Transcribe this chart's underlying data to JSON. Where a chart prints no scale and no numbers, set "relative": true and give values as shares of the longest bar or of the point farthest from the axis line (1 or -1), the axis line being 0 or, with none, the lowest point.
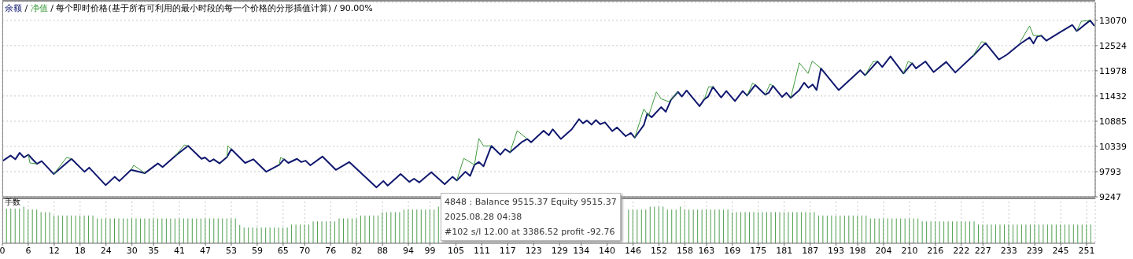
{
  "chart_data": [
    {
      "type": "line",
      "subtitle": "/ 每个即时价格(基于所有可利用的最小时段的每一个价格的分形插值计算) / 90.00%",
      "annotations": [
        "/"
      ],
      "legend": "top left",
      "grid": true,
      "marker": "none",
      "tick_labels": "y",
      "xlim": [
        0,
        253
      ],
      "xticks": [
        0,
        6,
        12,
        18,
        24,
        30,
        35,
        41,
        47,
        53,
        59,
        65,
        70,
        76,
        82,
        88,
        94,
        99,
        105,
        111,
        117,
        123,
        129,
        134,
        140,
        146,
        152,
        158,
        163,
        169,
        175,
        181,
        187,
        193,
        198,
        204,
        210,
        216,
        222,
        227,
        233,
        239,
        245,
        251
      ],
      "ylim": [
        9247,
        13460
      ],
      "yticks": [
        9247,
        9793,
        10339,
        10885,
        11432,
        11978,
        12524,
        13070
      ],
      "series": [
        {
          "name": "余额",
          "color": "#10186e",
          "x": [
            0,
            1.9,
            3.0,
            4.0,
            5.0,
            6.0,
            8.0,
            9.1,
            11.9,
            16.0,
            19.0,
            20.1,
            23.9,
            26.0,
            27.1,
            29.8,
            33.0,
            36.0,
            37.1,
            40.1,
            43.0,
            46.1,
            46.9,
            48.0,
            48.9,
            50.3,
            52.0,
            53.0,
            56.2,
            58.1,
            61.1,
            64.1,
            65.2,
            66.2,
            68.2,
            69.2,
            70.2,
            71.3,
            74.1,
            77.2,
            80.3,
            86.6,
            88.2,
            89.2,
            92.2,
            94.2,
            95.3,
            96.5,
            99.3,
            102.4,
            104.2,
            105.2,
            107.2,
            108.3,
            109.3,
            110.3,
            111.4,
            113.2,
            115.3,
            116.4,
            117.5,
            120.2,
            121.5,
            122.4,
            125.3,
            126.5,
            127.4,
            129.3,
            131.8,
            133.5,
            134.4,
            135.3,
            136.4,
            137.4,
            138.4,
            139.5,
            141.2,
            142.3,
            144.3,
            145.5,
            146.4,
            148.5,
            149.3,
            150.3,
            152.5,
            153.6,
            154.8,
            156.4,
            157.3,
            158.4,
            161.4,
            162.5,
            163.4,
            164.5,
            166.4,
            167.6,
            169.6,
            171.4,
            172.4,
            174.3,
            176.6,
            177.4,
            178.4,
            180.5,
            181.5,
            182.5,
            184.5,
            185.6,
            186.6,
            187.6,
            188.5,
            189.5,
            193.6,
            198.6,
            199.7,
            202.6,
            203.7,
            205.6,
            208.6,
            210.6,
            211.5,
            213.7,
            215.6,
            218.5,
            220.6,
            224.7,
            227.6,
            230.7,
            232.6,
            235.6,
            237.8,
            238.7,
            239.6,
            240.5,
            241.7,
            244.8,
            247.7,
            248.7,
            249.6,
            251.8,
            252.8
          ],
          "values": [
            10020,
            10140,
            10060,
            10200,
            10100,
            10160,
            9960,
            10020,
            9740,
            10070,
            9790,
            9880,
            9500,
            9680,
            9590,
            9830,
            9760,
            9970,
            9890,
            10140,
            10350,
            10070,
            10100,
            10010,
            10060,
            9970,
            10110,
            10280,
            9980,
            10060,
            9790,
            9940,
            10060,
            9980,
            10070,
            10000,
            10030,
            9930,
            10120,
            9830,
            10000,
            9450,
            9590,
            9490,
            9740,
            9570,
            9640,
            9560,
            9780,
            9520,
            9680,
            9600,
            9790,
            9700,
            9940,
            10000,
            9910,
            10350,
            10160,
            10280,
            10210,
            10430,
            10500,
            10430,
            10680,
            10580,
            10710,
            10500,
            10710,
            10930,
            10840,
            10900,
            10810,
            10910,
            10820,
            10860,
            10670,
            10750,
            10560,
            10630,
            10530,
            10800,
            11050,
            10970,
            11190,
            11090,
            11350,
            11520,
            11420,
            11550,
            11210,
            11360,
            11420,
            11630,
            11400,
            11540,
            11320,
            11540,
            11440,
            11670,
            11460,
            11500,
            11650,
            11410,
            11500,
            11390,
            11560,
            11720,
            11610,
            11680,
            11560,
            12030,
            11560,
            11990,
            11880,
            12180,
            12060,
            12290,
            11920,
            12140,
            12030,
            12180,
            11950,
            12170,
            11940,
            12300,
            12580,
            12220,
            12330,
            12560,
            12700,
            12570,
            12720,
            12740,
            12630,
            12810,
            12970,
            12840,
            12900,
            13070,
            12950
          ]
        },
        {
          "name": "净值",
          "color": "#3d9a3d",
          "x": [
            6.0,
            6.4,
            8.0,
            10,
            11.9,
            14.9,
            16.0,
            20,
            29.8,
            30.4,
            33.0,
            35,
            40.1,
            42.1,
            43.0,
            50,
            52.0,
            52.2,
            53.0,
            60,
            64.1,
            64.4,
            65.2,
            80,
            105.2,
            106.8,
            109.3,
            110.3,
            111.4,
            113.2,
            115,
            117.5,
            119.2,
            121.5,
            130,
            146.4,
            148.5,
            149.6,
            151.4,
            152.5,
            154.3,
            156.4,
            160,
            162.5,
            163.5,
            164.5,
            170,
            172.4,
            173.7,
            174.3,
            175,
            176.6,
            177.7,
            178.4,
            180,
            182.5,
            184.5,
            186.5,
            187.5,
            189.5,
            195,
            199.7,
            201.6,
            202.6,
            205,
            208.6,
            209.7,
            210.6,
            220,
            224.7,
            226.7,
            227.6,
            230,
            235.6,
            237.8,
            238.7,
            240.5,
            245,
            248.7,
            249.8,
            251.8
          ],
          "values": [
            10160,
            9980,
            9960,
            null,
            9740,
            10100,
            10070,
            null,
            9830,
            9930,
            9760,
            null,
            10140,
            10370,
            10350,
            null,
            10110,
            10350,
            10280,
            null,
            9940,
            10100,
            10060,
            null,
            9600,
            10080,
            9940,
            10510,
            10350,
            10350,
            null,
            10210,
            10680,
            10500,
            null,
            10530,
            11150,
            11000,
            11520,
            11370,
            11310,
            11520,
            null,
            11360,
            11630,
            11630,
            null,
            11440,
            11710,
            11670,
            null,
            11460,
            11690,
            11650,
            null,
            11390,
            12150,
            11920,
            12190,
            12030,
            null,
            11880,
            12180,
            12180,
            null,
            11920,
            12180,
            12140,
            null,
            12300,
            12610,
            12580,
            null,
            12600,
            12950,
            12740,
            12740,
            null,
            12840,
            13050,
            13070
          ]
        }
      ]
    },
    {
      "type": "bar",
      "relative": true,
      "ylabel": "手数",
      "grid": "x",
      "tick_labels": "x",
      "xlim": [
        0,
        253
      ],
      "xticks": [
        0,
        6,
        12,
        18,
        24,
        30,
        35,
        41,
        47,
        53,
        59,
        65,
        70,
        76,
        82,
        88,
        94,
        99,
        105,
        111,
        117,
        123,
        129,
        134,
        140,
        146,
        152,
        158,
        163,
        169,
        175,
        181,
        187,
        193,
        198,
        204,
        210,
        216,
        222,
        227,
        233,
        239,
        245,
        251
      ],
      "annotations": [
        "4848 : Balance 9515.37 Equity 9515.37",
        "2025.08.28 04:38",
        "#102 s/l 12.00 at 3386.52 profit -92.76"
      ],
      "series": [
        {
          "color": "#4f9f4f",
          "x": [
            1,
            2,
            3,
            4,
            5,
            6,
            7,
            8,
            9,
            10,
            11,
            12,
            13,
            14,
            15,
            16,
            17,
            18,
            19,
            20,
            21,
            22,
            23,
            24,
            25,
            26,
            27,
            28,
            29,
            30,
            31,
            32,
            33,
            34,
            35,
            36,
            37,
            38,
            39,
            40,
            41,
            42,
            43,
            44,
            45,
            46,
            47,
            48,
            49,
            50,
            51,
            52,
            53,
            54,
            55,
            56,
            57,
            58,
            59,
            60,
            61,
            62,
            63,
            64,
            65,
            66,
            67,
            68,
            69,
            70,
            71,
            72,
            73,
            74,
            75,
            76,
            77,
            78,
            79,
            80,
            81,
            82,
            83,
            84,
            85,
            86,
            87,
            88,
            89,
            90,
            91,
            92,
            93,
            94,
            95,
            96,
            97,
            98,
            99,
            100,
            101,
            102,
            103,
            104,
            105,
            106,
            107,
            108,
            109,
            110,
            111,
            112,
            113,
            114,
            115,
            116,
            117,
            118,
            119,
            120,
            121,
            122,
            123,
            124,
            125,
            126,
            127,
            128,
            129,
            130,
            131,
            132,
            133,
            134,
            135,
            136,
            137,
            138,
            139,
            140,
            141,
            142,
            143,
            144,
            145,
            146,
            147,
            148,
            149,
            150,
            151,
            152,
            153,
            154,
            155,
            156,
            157,
            158,
            159,
            160,
            161,
            162,
            163,
            164,
            165,
            166,
            167,
            168,
            169,
            170,
            171,
            172,
            173,
            174,
            175,
            176,
            177,
            178,
            179,
            180,
            181,
            182,
            183,
            184,
            185,
            186,
            187,
            188,
            189,
            190,
            191,
            192,
            193,
            194,
            195,
            196,
            197,
            198,
            199,
            200,
            201,
            202,
            203,
            204,
            205,
            206,
            207,
            208,
            209,
            210,
            211,
            212,
            213,
            214,
            215,
            216,
            217,
            218,
            219,
            220,
            221,
            222,
            223,
            224,
            225,
            226,
            227,
            228,
            229,
            230,
            231,
            232,
            233,
            234,
            235,
            236,
            237,
            238,
            239,
            240,
            241,
            242,
            243,
            244,
            245,
            246,
            247,
            248,
            249,
            250,
            251,
            252
          ],
          "values": [
            0.95,
            0.95,
            0.95,
            0.95,
            1,
            0.92,
            0.92,
            0.92,
            0.85,
            0.85,
            0.85,
            0.76,
            0.76,
            0.76,
            0.76,
            0.76,
            0.76,
            0.76,
            0.76,
            0.76,
            0.76,
            0.68,
            0.68,
            0.68,
            0.68,
            0.68,
            0.68,
            0.68,
            0.68,
            0.68,
            0.68,
            0.68,
            0.68,
            0.68,
            0.68,
            0.68,
            0.68,
            0.68,
            0.68,
            0.68,
            0.68,
            0.68,
            0.68,
            0.68,
            0.68,
            0.68,
            0.68,
            0.68,
            0.68,
            0.68,
            0.68,
            0.68,
            0.68,
            0.68,
            0.5,
            0.43,
            0.43,
            0.43,
            0.43,
            0.43,
            0.43,
            0.43,
            0.43,
            0.43,
            0.43,
            0.43,
            0.51,
            0.51,
            0.51,
            0.51,
            0.51,
            0.6,
            0.6,
            0.6,
            0.6,
            0.6,
            0.6,
            0.68,
            0.68,
            0.68,
            0.68,
            0.68,
            0.76,
            0.76,
            0.76,
            0.76,
            0.76,
            0.85,
            0.85,
            0.85,
            0.85,
            0.85,
            0.92,
            0.92,
            0.92,
            0.92,
            0.92,
            0.92,
            0.92,
            0.92,
            1,
            null,
            null,
            null,
            null,
            null,
            null,
            null,
            null,
            null,
            null,
            null,
            null,
            null,
            null,
            null,
            null,
            null,
            null,
            null,
            null,
            null,
            null,
            null,
            null,
            null,
            null,
            null,
            null,
            null,
            null,
            null,
            null,
            null,
            null,
            null,
            null,
            null,
            null,
            null,
            null,
            null,
            null,
            null,
            0.92,
            0.92,
            0.92,
            0.92,
            0.92,
            1,
            1,
            1,
            1,
            0.92,
            0.92,
            0.92,
            1,
            0.92,
            0.92,
            0.92,
            0.92,
            0.92,
            0.92,
            0.92,
            0.92,
            0.92,
            0.92,
            0.92,
            0.85,
            0.85,
            0.85,
            0.85,
            0.85,
            0.85,
            0.85,
            0.85,
            0.85,
            0.85,
            0.85,
            0.85,
            0.85,
            0.85,
            0.85,
            0.85,
            0.85,
            0.85,
            0.85,
            0.85,
            0.76,
            0.76,
            0.76,
            0.76,
            0.76,
            0.76,
            0.76,
            0.76,
            0.76,
            0.76,
            0.76,
            0.76,
            0.68,
            0.68,
            0.68,
            0.68,
            0.68,
            0.68,
            0.68,
            0.68,
            0.68,
            0.68,
            0.68,
            0.68,
            0.6,
            0.6,
            0.6,
            0.6,
            0.6,
            0.6,
            0.6,
            0.6,
            0.6,
            0.6,
            0.6,
            0.6,
            0.6,
            0.51,
            0.51,
            0.51,
            0.51,
            0.51,
            0.51,
            0.51,
            0.51,
            0.51,
            0.51,
            0.51,
            0.51,
            0.51,
            0.51,
            0.51,
            0.51,
            0.51,
            0.51,
            0.51,
            0.51,
            0.51,
            0.51,
            0.51,
            0.51,
            0.51,
            0.51,
            0.51
          ]
        }
      ]
    }
  ]
}
